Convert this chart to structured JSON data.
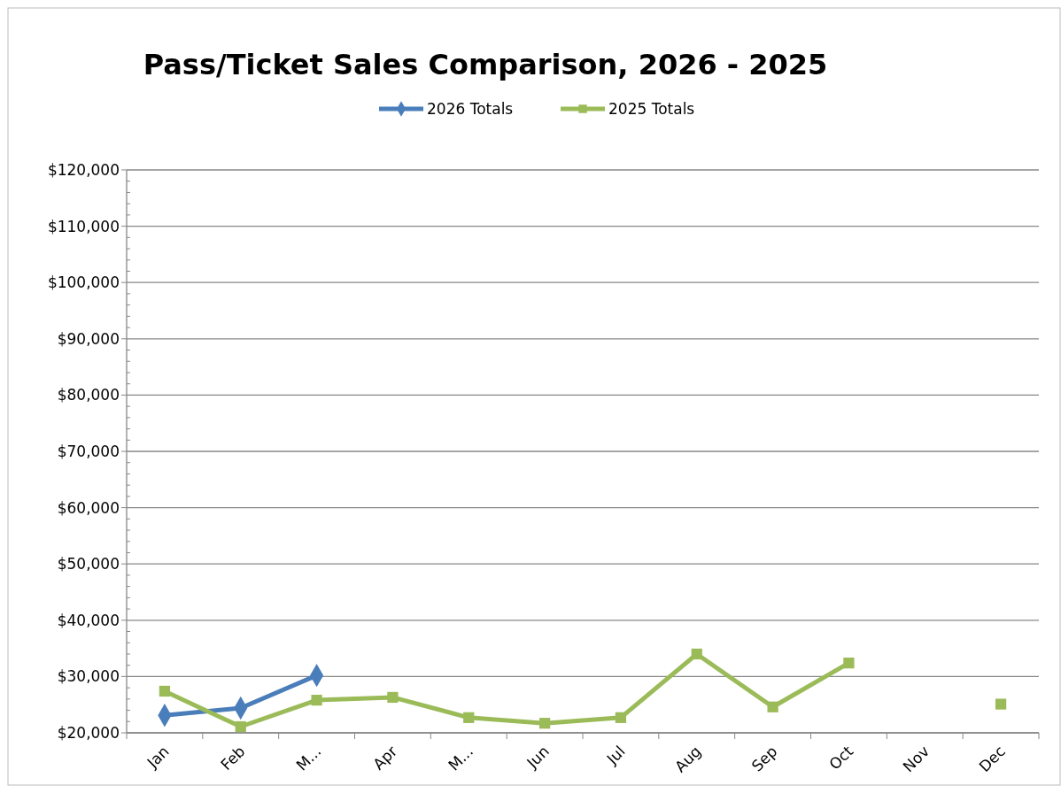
{
  "chart_data": {
    "type": "line",
    "title": "Pass/Ticket Sales Comparison, 2026 - 2025",
    "categories": [
      "Jan",
      "Feb",
      "M...",
      "Apr",
      "M...",
      "Jun",
      "Jul",
      "Aug",
      "Sep",
      "Oct",
      "Nov",
      "Dec"
    ],
    "series": [
      {
        "name": "2026 Totals",
        "color": "#4a7ebb",
        "marker": "diamond",
        "values": [
          23100,
          24400,
          30200,
          null,
          null,
          null,
          null,
          null,
          null,
          null,
          null,
          null
        ]
      },
      {
        "name": "2025 Totals",
        "color": "#9bbb59",
        "marker": "square",
        "values": [
          27400,
          21100,
          25800,
          26300,
          22700,
          21700,
          22700,
          34000,
          24600,
          32400,
          null,
          25100
        ]
      }
    ],
    "ylim": [
      20000,
      120000
    ],
    "yticks": [
      {
        "value": 20000,
        "label": "$20,000"
      },
      {
        "value": 30000,
        "label": "$30,000"
      },
      {
        "value": 40000,
        "label": "$40,000"
      },
      {
        "value": 50000,
        "label": "$50,000"
      },
      {
        "value": 60000,
        "label": "$60,000"
      },
      {
        "value": 70000,
        "label": "$70,000"
      },
      {
        "value": 80000,
        "label": "$80,000"
      },
      {
        "value": 90000,
        "label": "$90,000"
      },
      {
        "value": 100000,
        "label": "$100,000"
      },
      {
        "value": 110000,
        "label": "$110,000"
      },
      {
        "value": 120000,
        "label": "$120,000"
      }
    ],
    "grid": "y",
    "legend": "top"
  }
}
